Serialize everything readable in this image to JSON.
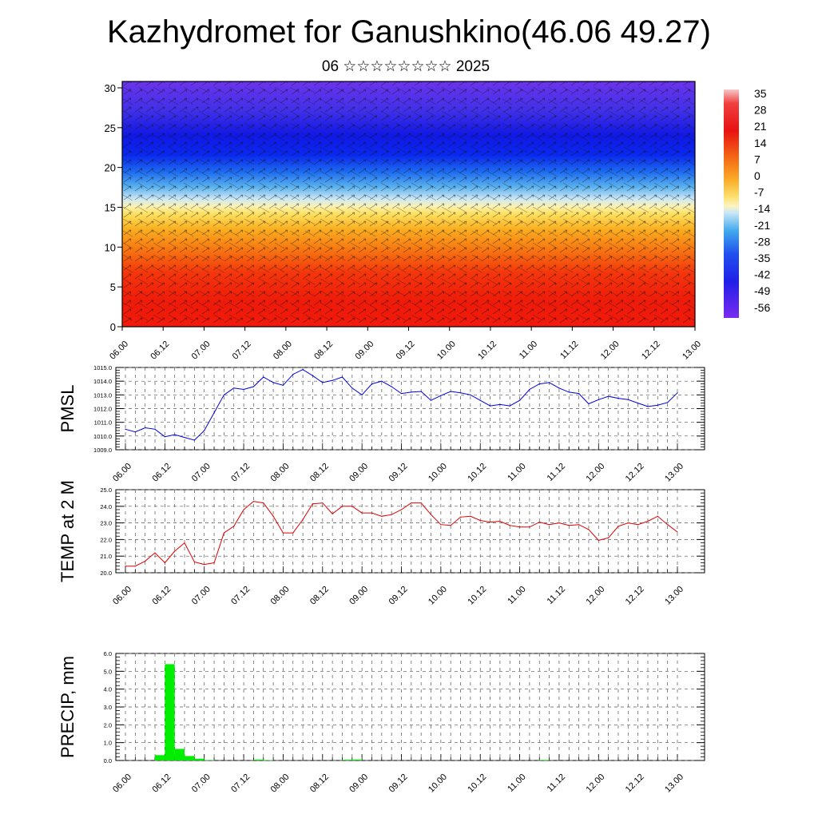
{
  "header": {
    "title": "Kazhydromet for Ganushkino(46.06 49.27)",
    "subtitle": "06 ☆☆☆☆☆☆☆☆ 2025"
  },
  "colors": {
    "pmsl_line": "#0000dd",
    "temp_line": "#dd0000",
    "precip_bar": "#00ee00"
  },
  "chart_data": [
    {
      "type": "heatmap",
      "name": "cross-section",
      "x_ticks": [
        "06.00",
        "06.12",
        "07.00",
        "07.12",
        "08.00",
        "08.12",
        "09.00",
        "09.12",
        "10.00",
        "10.12",
        "11.00",
        "11.12",
        "12.00",
        "12.12",
        "13.00"
      ],
      "y_ticks": [
        0,
        5,
        10,
        15,
        20,
        25,
        30
      ],
      "ylim": [
        0,
        30.8
      ],
      "colorbar_labels": [
        "35",
        "28",
        "21",
        "14",
        "7",
        "0",
        "-7",
        "-14",
        "-21",
        "-28",
        "-35",
        "-42",
        "-49",
        "-56"
      ],
      "overlay": "wind vectors"
    },
    {
      "type": "line",
      "name": "pmsl",
      "ylabel": "PMSL",
      "ylim": [
        1009.0,
        1015.0
      ],
      "y_ticks": [
        "1009.0",
        "1010.0",
        "1011.0",
        "1012.0",
        "1013.0",
        "1014.0",
        "1015.0"
      ],
      "x_ticks": [
        "06.00",
        "06.12",
        "07.00",
        "07.12",
        "08.00",
        "08.12",
        "09.00",
        "09.12",
        "10.00",
        "10.12",
        "11.00",
        "11.12",
        "12.00",
        "12.12",
        "13.00"
      ],
      "x_step_hours": 3,
      "values": [
        1010.5,
        1010.3,
        1010.6,
        1010.5,
        1009.95,
        1010.1,
        1009.9,
        1009.7,
        1010.4,
        1011.7,
        1013.0,
        1013.5,
        1013.4,
        1013.6,
        1014.3,
        1013.9,
        1013.7,
        1014.5,
        1014.85,
        1014.4,
        1013.9,
        1014.05,
        1014.3,
        1013.5,
        1013.0,
        1013.8,
        1014.0,
        1013.6,
        1013.1,
        1013.2,
        1013.25,
        1012.6,
        1012.95,
        1013.25,
        1013.15,
        1013.0,
        1012.6,
        1012.2,
        1012.3,
        1012.2,
        1012.6,
        1013.4,
        1013.8,
        1013.9,
        1013.5,
        1013.2,
        1013.1,
        1012.35,
        1012.65,
        1012.9,
        1012.75,
        1012.65,
        1012.4,
        1012.15,
        1012.25,
        1012.45,
        1013.15
      ]
    },
    {
      "type": "line",
      "name": "temp",
      "ylabel": "TEMP at 2 M",
      "ylim": [
        20.0,
        25.0
      ],
      "y_ticks": [
        "20.0",
        "21.0",
        "22.0",
        "23.0",
        "24.0",
        "25.0"
      ],
      "x_ticks": [
        "06.00",
        "06.12",
        "07.00",
        "07.12",
        "08.00",
        "08.12",
        "09.00",
        "09.12",
        "10.00",
        "10.12",
        "11.00",
        "11.12",
        "12.00",
        "12.12",
        "13.00"
      ],
      "x_step_hours": 3,
      "values": [
        20.4,
        20.4,
        20.7,
        21.2,
        20.6,
        21.3,
        21.8,
        20.65,
        20.5,
        20.6,
        22.4,
        22.8,
        23.8,
        24.3,
        24.2,
        23.4,
        22.4,
        22.4,
        23.2,
        24.15,
        24.2,
        23.55,
        24.0,
        24.0,
        23.6,
        23.6,
        23.4,
        23.5,
        23.8,
        24.2,
        24.2,
        23.5,
        22.9,
        22.85,
        23.35,
        23.4,
        23.15,
        23.05,
        23.1,
        22.85,
        22.75,
        22.75,
        23.05,
        22.9,
        23.0,
        22.85,
        22.9,
        22.6,
        21.95,
        22.1,
        22.8,
        23.0,
        22.9,
        23.1,
        23.4,
        22.9,
        22.45
      ]
    },
    {
      "type": "bar",
      "name": "precip",
      "ylabel": "PRECIP, mm",
      "ylim": [
        0.0,
        6.0
      ],
      "y_ticks": [
        "0.0",
        "1.0",
        "2.0",
        "3.0",
        "4.0",
        "5.0",
        "6.0"
      ],
      "x_ticks": [
        "06.00",
        "06.12",
        "07.00",
        "07.12",
        "08.00",
        "08.12",
        "09.00",
        "09.12",
        "10.00",
        "10.12",
        "11.00",
        "11.12",
        "12.00",
        "12.12",
        "13.00"
      ],
      "x_step_hours": 3,
      "values": [
        0,
        0,
        0,
        0.3,
        5.4,
        0.65,
        0.25,
        0.1,
        0.02,
        0,
        0,
        0,
        0,
        0.05,
        0.02,
        0,
        0,
        0,
        0,
        0,
        0,
        0,
        0.04,
        0.05,
        0,
        0,
        0,
        0,
        0,
        0,
        0,
        0,
        0,
        0,
        0,
        0,
        0,
        0,
        0,
        0,
        0,
        0,
        0.03,
        0,
        0,
        0,
        0,
        0,
        0,
        0,
        0,
        0,
        0,
        0,
        0,
        0
      ]
    }
  ]
}
